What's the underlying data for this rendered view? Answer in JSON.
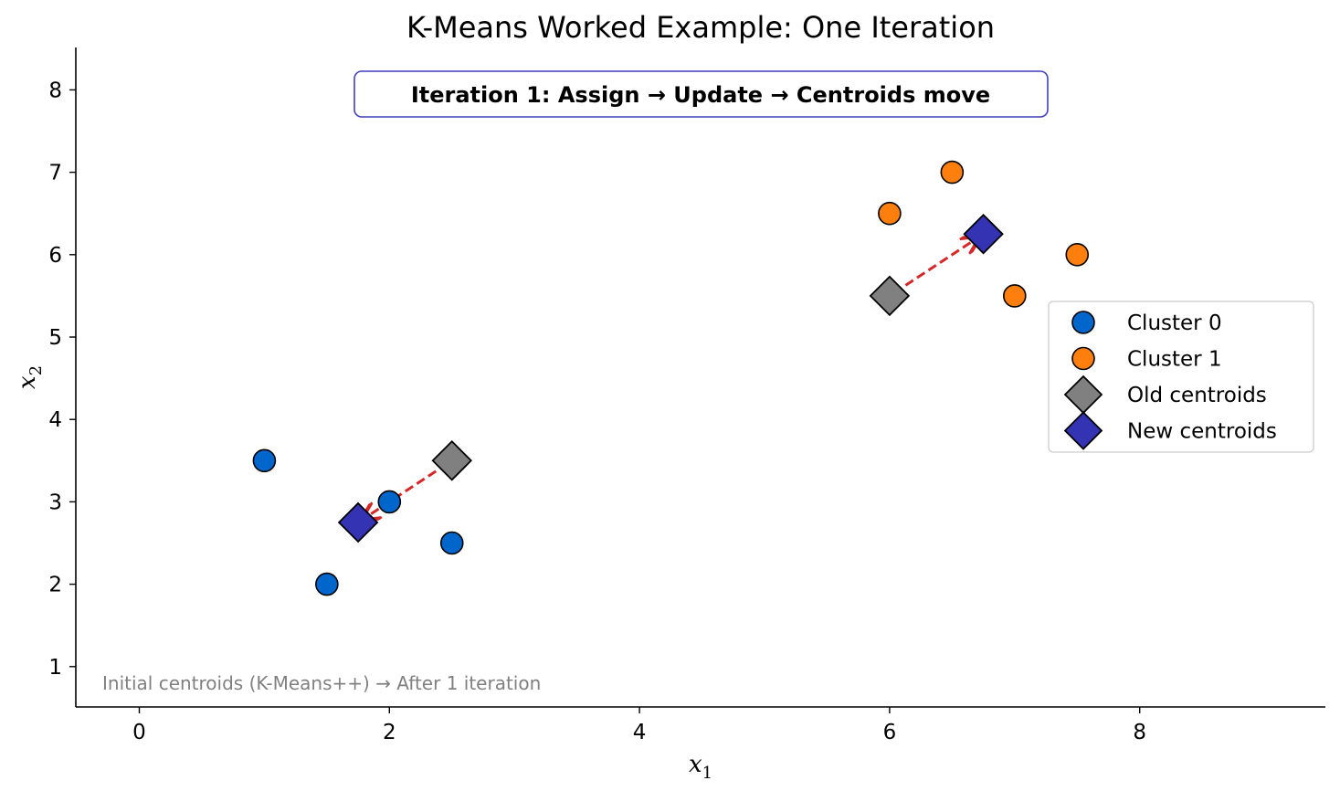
{
  "chart_data": {
    "type": "scatter",
    "title": "K-Means Worked Example: One Iteration",
    "xlabel": "x",
    "xlabel_sub": "1",
    "ylabel": "x",
    "ylabel_sub": "2",
    "xlim": [
      -0.5,
      9.5
    ],
    "ylim": [
      0.5,
      8.5
    ],
    "xticks": [
      0,
      2,
      4,
      6,
      8
    ],
    "yticks": [
      1,
      2,
      3,
      4,
      5,
      6,
      7,
      8
    ],
    "grid": false,
    "legend_position": "center-right",
    "banner": "Iteration 1: Assign → Update → Centroids move",
    "footnote": "Initial centroids (K-Means++) → After 1 iteration",
    "series": [
      {
        "name": "Cluster 0",
        "marker": "circle",
        "color": "#0066cc",
        "points": [
          [
            1,
            3.5
          ],
          [
            1.5,
            2
          ],
          [
            2,
            3
          ],
          [
            2.5,
            2.5
          ]
        ]
      },
      {
        "name": "Cluster 1",
        "marker": "circle",
        "color": "#ff7f0e",
        "points": [
          [
            6,
            6.5
          ],
          [
            6.5,
            7
          ],
          [
            7,
            5.5
          ],
          [
            7.5,
            6
          ]
        ]
      },
      {
        "name": "Old centroids",
        "marker": "diamond",
        "color": "#808080",
        "points": [
          [
            2.5,
            3.5
          ],
          [
            6,
            5.5
          ]
        ]
      },
      {
        "name": "New centroids",
        "marker": "diamond",
        "color": "#3333b3",
        "points": [
          [
            1.75,
            2.75
          ],
          [
            6.75,
            6.25
          ]
        ]
      }
    ],
    "arrows": [
      {
        "from": [
          2.5,
          3.5
        ],
        "to": [
          1.75,
          2.75
        ],
        "color": "#d62728"
      },
      {
        "from": [
          6,
          5.5
        ],
        "to": [
          6.75,
          6.25
        ],
        "color": "#d62728"
      }
    ],
    "banner_border_color": "#3f3fbf"
  }
}
